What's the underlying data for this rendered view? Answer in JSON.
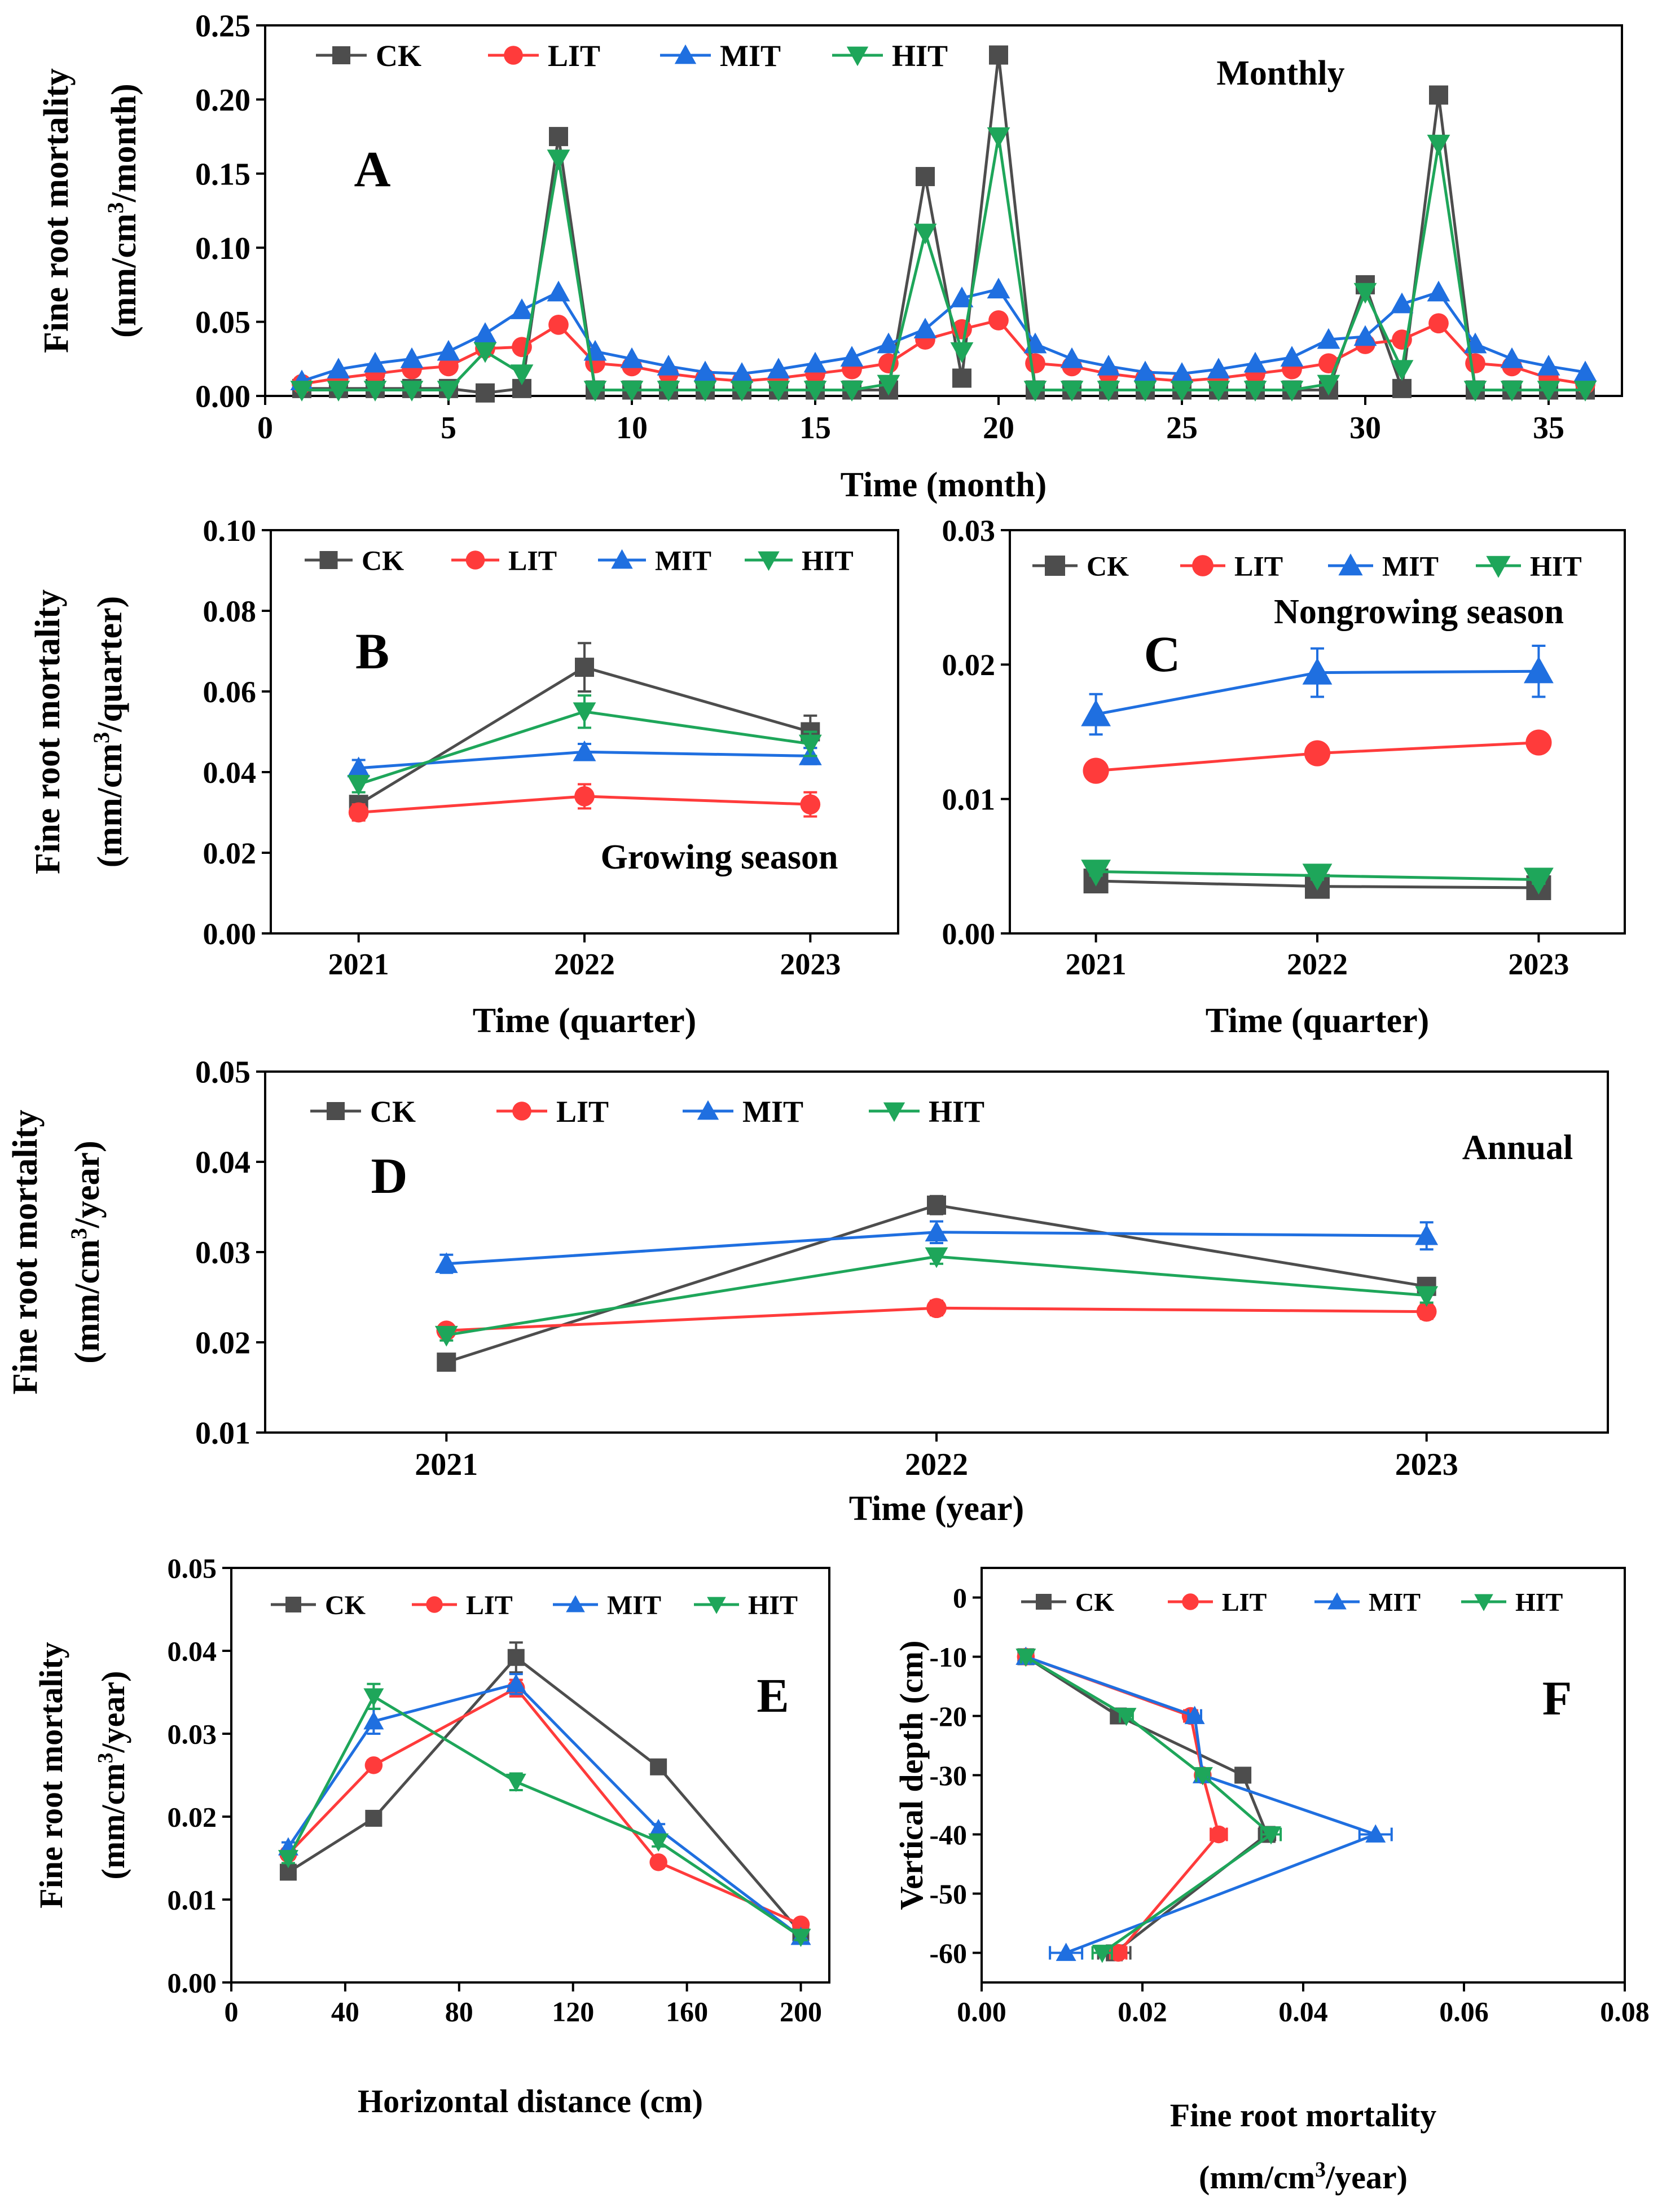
{
  "colors": {
    "CK": "#4d4d4d",
    "LIT": "#ff3b3b",
    "MIT": "#1f6fe0",
    "HIT": "#1ea65a"
  },
  "legend": [
    "CK",
    "LIT",
    "MIT",
    "HIT"
  ],
  "chart_data": [
    {
      "id": "A",
      "type": "line",
      "panel_label": "A",
      "title": "Monthly",
      "xlabel": "Time (month)",
      "ylabel": [
        "Fine root mortality",
        "(mm/cm",
        "3",
        "/month)"
      ],
      "xlim": [
        0,
        37
      ],
      "ylim": [
        0,
        0.25
      ],
      "xticks": [
        0,
        5,
        10,
        15,
        20,
        25,
        30,
        35
      ],
      "xtick_labels": [
        "0",
        "5",
        "10",
        "15",
        "20",
        "25",
        "30",
        "35"
      ],
      "yticks": [
        0,
        0.05,
        0.1,
        0.15,
        0.2,
        0.25
      ],
      "ytick_labels": [
        "0.00",
        "0.05",
        "0.10",
        "0.15",
        "0.20",
        "0.25"
      ],
      "x": [
        1,
        2,
        3,
        4,
        5,
        6,
        7,
        8,
        9,
        10,
        11,
        12,
        13,
        14,
        15,
        16,
        17,
        18,
        19,
        20,
        21,
        22,
        23,
        24,
        25,
        26,
        27,
        28,
        29,
        30,
        31,
        32,
        33,
        34,
        35,
        36
      ],
      "series": [
        {
          "name": "CK",
          "values": [
            0.005,
            0.005,
            0.005,
            0.005,
            0.005,
            0.002,
            0.005,
            0.175,
            0.004,
            0.004,
            0.004,
            0.004,
            0.004,
            0.004,
            0.004,
            0.004,
            0.004,
            0.148,
            0.012,
            0.23,
            0.004,
            0.004,
            0.004,
            0.004,
            0.004,
            0.004,
            0.004,
            0.004,
            0.004,
            0.075,
            0.005,
            0.203,
            0.004,
            0.004,
            0.004,
            0.004
          ]
        },
        {
          "name": "LIT",
          "values": [
            0.008,
            0.012,
            0.015,
            0.018,
            0.02,
            0.032,
            0.033,
            0.048,
            0.022,
            0.02,
            0.015,
            0.012,
            0.01,
            0.012,
            0.015,
            0.018,
            0.022,
            0.038,
            0.045,
            0.051,
            0.022,
            0.02,
            0.015,
            0.012,
            0.01,
            0.012,
            0.015,
            0.018,
            0.022,
            0.035,
            0.038,
            0.049,
            0.022,
            0.02,
            0.012,
            0.008
          ]
        },
        {
          "name": "MIT",
          "values": [
            0.01,
            0.018,
            0.022,
            0.025,
            0.03,
            0.042,
            0.058,
            0.07,
            0.03,
            0.025,
            0.02,
            0.016,
            0.015,
            0.018,
            0.022,
            0.026,
            0.035,
            0.045,
            0.066,
            0.072,
            0.035,
            0.025,
            0.02,
            0.016,
            0.015,
            0.018,
            0.022,
            0.026,
            0.038,
            0.04,
            0.062,
            0.07,
            0.035,
            0.025,
            0.02,
            0.016
          ]
        },
        {
          "name": "HIT",
          "values": [
            0.004,
            0.004,
            0.004,
            0.004,
            0.004,
            0.03,
            0.015,
            0.16,
            0.004,
            0.004,
            0.004,
            0.004,
            0.004,
            0.004,
            0.004,
            0.004,
            0.008,
            0.11,
            0.03,
            0.175,
            0.004,
            0.004,
            0.004,
            0.004,
            0.004,
            0.004,
            0.004,
            0.004,
            0.008,
            0.07,
            0.018,
            0.17,
            0.004,
            0.004,
            0.004,
            0.004
          ]
        }
      ]
    },
    {
      "id": "B",
      "type": "line",
      "panel_label": "B",
      "title": "Growing season",
      "xlabel": "Time (quarter)",
      "ylabel": [
        "Fine root mortality",
        "(mm/cm",
        "3",
        "/quarter)"
      ],
      "categories": [
        "2021",
        "2022",
        "2023"
      ],
      "ylim": [
        0,
        0.1
      ],
      "yticks": [
        0,
        0.02,
        0.04,
        0.06,
        0.08,
        0.1
      ],
      "ytick_labels": [
        "0.00",
        "0.02",
        "0.04",
        "0.06",
        "0.08",
        "0.10"
      ],
      "series": [
        {
          "name": "CK",
          "values": [
            0.032,
            0.066,
            0.05
          ],
          "errors": [
            0.002,
            0.006,
            0.004
          ]
        },
        {
          "name": "LIT",
          "values": [
            0.03,
            0.034,
            0.032
          ],
          "errors": [
            0.002,
            0.003,
            0.003
          ]
        },
        {
          "name": "MIT",
          "values": [
            0.041,
            0.045,
            0.044
          ],
          "errors": [
            0.002,
            0.002,
            0.002
          ]
        },
        {
          "name": "HIT",
          "values": [
            0.037,
            0.055,
            0.047
          ],
          "errors": [
            0.002,
            0.004,
            0.003
          ]
        }
      ]
    },
    {
      "id": "C",
      "type": "line",
      "panel_label": "C",
      "title": "Nongrowing season",
      "xlabel": "Time (quarter)",
      "ylabel": null,
      "categories": [
        "2021",
        "2022",
        "2023"
      ],
      "ylim": [
        0,
        0.03
      ],
      "yticks": [
        0,
        0.01,
        0.02,
        0.03
      ],
      "ytick_labels": [
        "0.00",
        "0.01",
        "0.02",
        "0.03"
      ],
      "series": [
        {
          "name": "CK",
          "values": [
            0.0039,
            0.0035,
            0.0034
          ],
          "errors": [
            0.0003,
            0.0003,
            0.0003
          ]
        },
        {
          "name": "LIT",
          "values": [
            0.0121,
            0.0134,
            0.0142
          ],
          "errors": [
            0.0004,
            0.0004,
            0.0005
          ]
        },
        {
          "name": "MIT",
          "values": [
            0.0163,
            0.0194,
            0.0195
          ],
          "errors": [
            0.0015,
            0.0018,
            0.0019
          ]
        },
        {
          "name": "HIT",
          "values": [
            0.0046,
            0.0043,
            0.004
          ],
          "errors": [
            0.0003,
            0.0003,
            0.0003
          ]
        }
      ]
    },
    {
      "id": "D",
      "type": "line",
      "panel_label": "D",
      "title": "Annual",
      "xlabel": "Time (year)",
      "ylabel": [
        "Fine root mortality",
        "(mm/cm",
        "3",
        "/year)"
      ],
      "categories": [
        "2021",
        "2022",
        "2023"
      ],
      "ylim": [
        0.01,
        0.05
      ],
      "yticks": [
        0.01,
        0.02,
        0.03,
        0.04,
        0.05
      ],
      "ytick_labels": [
        "0.01",
        "0.02",
        "0.03",
        "0.04",
        "0.05"
      ],
      "series": [
        {
          "name": "CK",
          "values": [
            0.0178,
            0.0352,
            0.0262
          ],
          "errors": [
            0.0008,
            0.001,
            0.0008
          ]
        },
        {
          "name": "LIT",
          "values": [
            0.0213,
            0.0238,
            0.0234
          ],
          "errors": [
            0.0006,
            0.0008,
            0.0008
          ]
        },
        {
          "name": "MIT",
          "values": [
            0.0287,
            0.0322,
            0.0318
          ],
          "errors": [
            0.001,
            0.0012,
            0.0015
          ]
        },
        {
          "name": "HIT",
          "values": [
            0.0208,
            0.0295,
            0.0252
          ],
          "errors": [
            0.0006,
            0.0008,
            0.0008
          ]
        }
      ]
    },
    {
      "id": "E",
      "type": "line",
      "panel_label": "E",
      "title": "",
      "xlabel": "Horizontal distance (cm)",
      "ylabel": [
        "Fine root mortality",
        "(mm/cm",
        "3",
        "/year)"
      ],
      "xlim": [
        0,
        210
      ],
      "ylim": [
        0,
        0.05
      ],
      "xticks": [
        0,
        40,
        80,
        120,
        160,
        200
      ],
      "xtick_labels": [
        "0",
        "40",
        "80",
        "120",
        "160",
        "200"
      ],
      "yticks": [
        0,
        0.01,
        0.02,
        0.03,
        0.04,
        0.05
      ],
      "ytick_labels": [
        "0.00",
        "0.01",
        "0.02",
        "0.03",
        "0.04",
        "0.05"
      ],
      "x": [
        20,
        50,
        100,
        150,
        200
      ],
      "series": [
        {
          "name": "CK",
          "values": [
            0.0133,
            0.0198,
            0.0392,
            0.026,
            0.006
          ],
          "errors": [
            0.0006,
            0.0005,
            0.0018,
            0.0006,
            0.0004
          ]
        },
        {
          "name": "LIT",
          "values": [
            0.0155,
            0.0262,
            0.0355,
            0.0145,
            0.007
          ],
          "errors": [
            0.0006,
            0.0006,
            0.001,
            0.0004,
            0.0004
          ]
        },
        {
          "name": "MIT",
          "values": [
            0.0163,
            0.0315,
            0.036,
            0.0185,
            0.0055
          ],
          "errors": [
            0.0006,
            0.0015,
            0.0012,
            0.0006,
            0.0004
          ]
        },
        {
          "name": "HIT",
          "values": [
            0.015,
            0.0345,
            0.0242,
            0.017,
            0.0055
          ],
          "errors": [
            0.0006,
            0.0015,
            0.001,
            0.0006,
            0.0004
          ]
        }
      ]
    },
    {
      "id": "F",
      "type": "line",
      "orientation": "horizontal",
      "panel_label": "F",
      "title": "",
      "xlabel": [
        "Fine root mortality",
        "(mm/cm",
        "3",
        "/year)"
      ],
      "ylabel": "Vertical depth (cm)",
      "xlim": [
        0,
        0.08
      ],
      "ylim": [
        -65,
        5
      ],
      "xticks": [
        0,
        0.02,
        0.04,
        0.06,
        0.08
      ],
      "xtick_labels": [
        "0.00",
        "0.02",
        "0.04",
        "0.06",
        "0.08"
      ],
      "yticks": [
        0,
        -10,
        -20,
        -30,
        -40,
        -50,
        -60
      ],
      "ytick_labels": [
        "0",
        "-10",
        "-20",
        "-30",
        "-40",
        "-50",
        "-60"
      ],
      "depths": [
        -10,
        -20,
        -30,
        -40,
        -60
      ],
      "series": [
        {
          "name": "CK",
          "values": [
            0.0055,
            0.017,
            0.0325,
            0.0355,
            0.0165
          ],
          "errors": [
            0.0006,
            0.0008,
            0.0008,
            0.001,
            0.002
          ]
        },
        {
          "name": "LIT",
          "values": [
            0.0055,
            0.026,
            0.0275,
            0.0295,
            0.017
          ],
          "errors": [
            0.0006,
            0.0008,
            0.0008,
            0.001,
            0.001
          ]
        },
        {
          "name": "MIT",
          "values": [
            0.0055,
            0.0265,
            0.0275,
            0.049,
            0.0105
          ],
          "errors": [
            0.0006,
            0.0008,
            0.0008,
            0.002,
            0.002
          ]
        },
        {
          "name": "HIT",
          "values": [
            0.0055,
            0.018,
            0.0275,
            0.036,
            0.015
          ],
          "errors": [
            0.0006,
            0.0008,
            0.0008,
            0.0012,
            0.0012
          ]
        }
      ]
    }
  ]
}
